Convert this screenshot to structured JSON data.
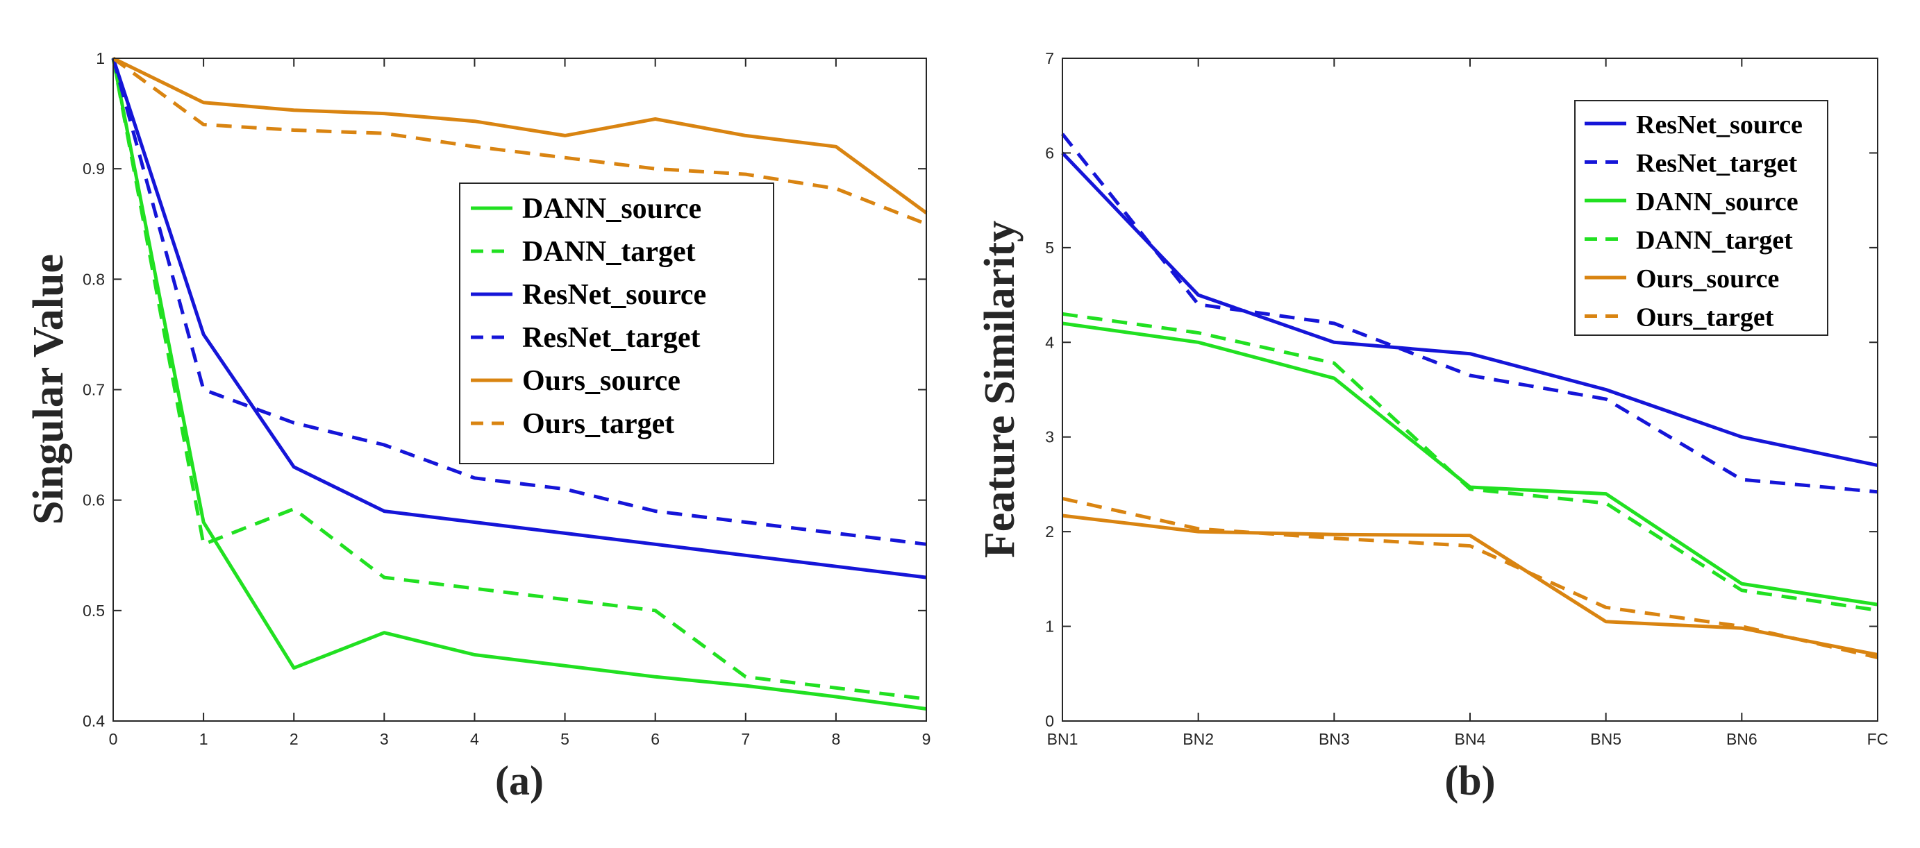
{
  "colors": {
    "dann": "#21e021",
    "resnet": "#1515d8",
    "ours": "#d98411",
    "axis": "#262626"
  },
  "chart_data": [
    {
      "type": "line",
      "panel_label": "(a)",
      "xlabel": "",
      "ylabel": "Singular Value",
      "xlim": [
        0,
        9
      ],
      "ylim": [
        0.4,
        1
      ],
      "x_ticks": [
        "0",
        "1",
        "2",
        "3",
        "4",
        "5",
        "6",
        "7",
        "8",
        "9"
      ],
      "y_ticks": [
        "0.4",
        "0.5",
        "0.6",
        "0.7",
        "0.8",
        "0.9",
        "1"
      ],
      "grid": false,
      "legend_position": "center-right",
      "x": [
        0,
        1,
        2,
        3,
        4,
        5,
        6,
        7,
        8,
        9
      ],
      "series": [
        {
          "name": "DANN_source",
          "color": "#21e021",
          "style": "solid",
          "values": [
            1,
            0.58,
            0.448,
            0.48,
            0.46,
            0.45,
            0.44,
            0.432,
            0.422,
            0.411
          ]
        },
        {
          "name": "DANN_target",
          "color": "#21e021",
          "style": "dashed",
          "values": [
            1,
            0.56,
            0.592,
            0.53,
            0.52,
            0.51,
            0.5,
            0.44,
            0.43,
            0.42
          ]
        },
        {
          "name": "ResNet_source",
          "color": "#1515d8",
          "style": "solid",
          "values": [
            1,
            0.75,
            0.63,
            0.59,
            0.58,
            0.57,
            0.56,
            0.55,
            0.54,
            0.53
          ]
        },
        {
          "name": "ResNet_target",
          "color": "#1515d8",
          "style": "dashed",
          "values": [
            1,
            0.7,
            0.67,
            0.65,
            0.62,
            0.61,
            0.59,
            0.58,
            0.57,
            0.56
          ]
        },
        {
          "name": "Ours_source",
          "color": "#d98411",
          "style": "solid",
          "values": [
            1,
            0.96,
            0.953,
            0.95,
            0.943,
            0.93,
            0.945,
            0.93,
            0.92,
            0.86
          ]
        },
        {
          "name": "Ours_target",
          "color": "#d98411",
          "style": "dashed",
          "values": [
            1,
            0.94,
            0.935,
            0.932,
            0.92,
            0.91,
            0.9,
            0.895,
            0.882,
            0.85
          ]
        }
      ]
    },
    {
      "type": "line",
      "panel_label": "(b)",
      "xlabel": "",
      "ylabel": "Feature Similarity",
      "categories": [
        "BN1",
        "BN2",
        "BN3",
        "BN4",
        "BN5",
        "BN6",
        "FC"
      ],
      "ylim": [
        0,
        7
      ],
      "y_ticks": [
        "0",
        "1",
        "2",
        "3",
        "4",
        "5",
        "6",
        "7"
      ],
      "grid": false,
      "legend_position": "top-right",
      "series": [
        {
          "name": "ResNet_source",
          "color": "#1515d8",
          "style": "solid",
          "values": [
            6.0,
            4.5,
            4.0,
            3.88,
            3.5,
            3.0,
            2.7
          ]
        },
        {
          "name": "ResNet_target",
          "color": "#1515d8",
          "style": "dashed",
          "values": [
            6.2,
            4.4,
            4.2,
            3.65,
            3.4,
            2.55,
            2.42
          ]
        },
        {
          "name": "DANN_source",
          "color": "#21e021",
          "style": "solid",
          "values": [
            4.2,
            4.0,
            3.62,
            2.47,
            2.4,
            1.45,
            1.23
          ]
        },
        {
          "name": "DANN_target",
          "color": "#21e021",
          "style": "dashed",
          "values": [
            4.3,
            4.1,
            3.78,
            2.45,
            2.3,
            1.38,
            1.17
          ]
        },
        {
          "name": "Ours_source",
          "color": "#d98411",
          "style": "solid",
          "values": [
            2.17,
            2.0,
            1.97,
            1.96,
            1.05,
            0.98,
            0.7
          ]
        },
        {
          "name": "Ours_target",
          "color": "#d98411",
          "style": "dashed",
          "values": [
            2.35,
            2.03,
            1.93,
            1.85,
            1.2,
            1.0,
            0.67
          ]
        }
      ]
    }
  ]
}
